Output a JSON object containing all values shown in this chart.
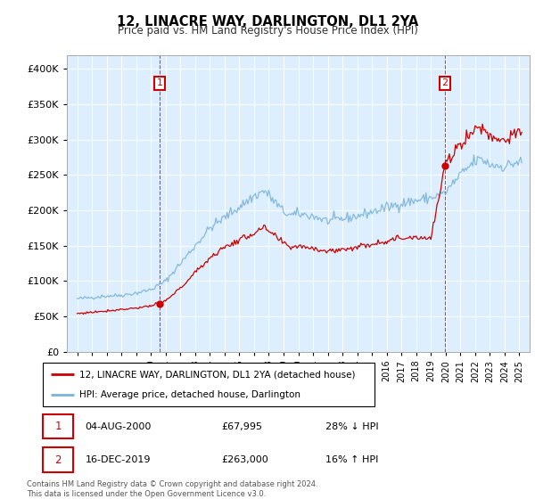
{
  "title": "12, LINACRE WAY, DARLINGTON, DL1 2YA",
  "subtitle": "Price paid vs. HM Land Registry's House Price Index (HPI)",
  "ylim": [
    0,
    420000
  ],
  "yticks": [
    0,
    50000,
    100000,
    150000,
    200000,
    250000,
    300000,
    350000,
    400000
  ],
  "sale1_x": 2000.583,
  "sale1_price": 67995,
  "sale2_x": 2019.958,
  "sale2_price": 263000,
  "hpi_color": "#7ab4d8",
  "price_color": "#cc0000",
  "vline_color": "#cc0000",
  "plot_bg_color": "#ddeeff",
  "grid_color": "#ffffff",
  "legend_label_price": "12, LINACRE WAY, DARLINGTON, DL1 2YA (detached house)",
  "legend_label_hpi": "HPI: Average price, detached house, Darlington",
  "footer_text": "Contains HM Land Registry data © Crown copyright and database right 2024.\nThis data is licensed under the Open Government Licence v3.0.",
  "note1_date": "04-AUG-2000",
  "note1_price": "£67,995",
  "note1_hpi": "28% ↓ HPI",
  "note2_date": "16-DEC-2019",
  "note2_price": "£263,000",
  "note2_hpi": "16% ↑ HPI"
}
